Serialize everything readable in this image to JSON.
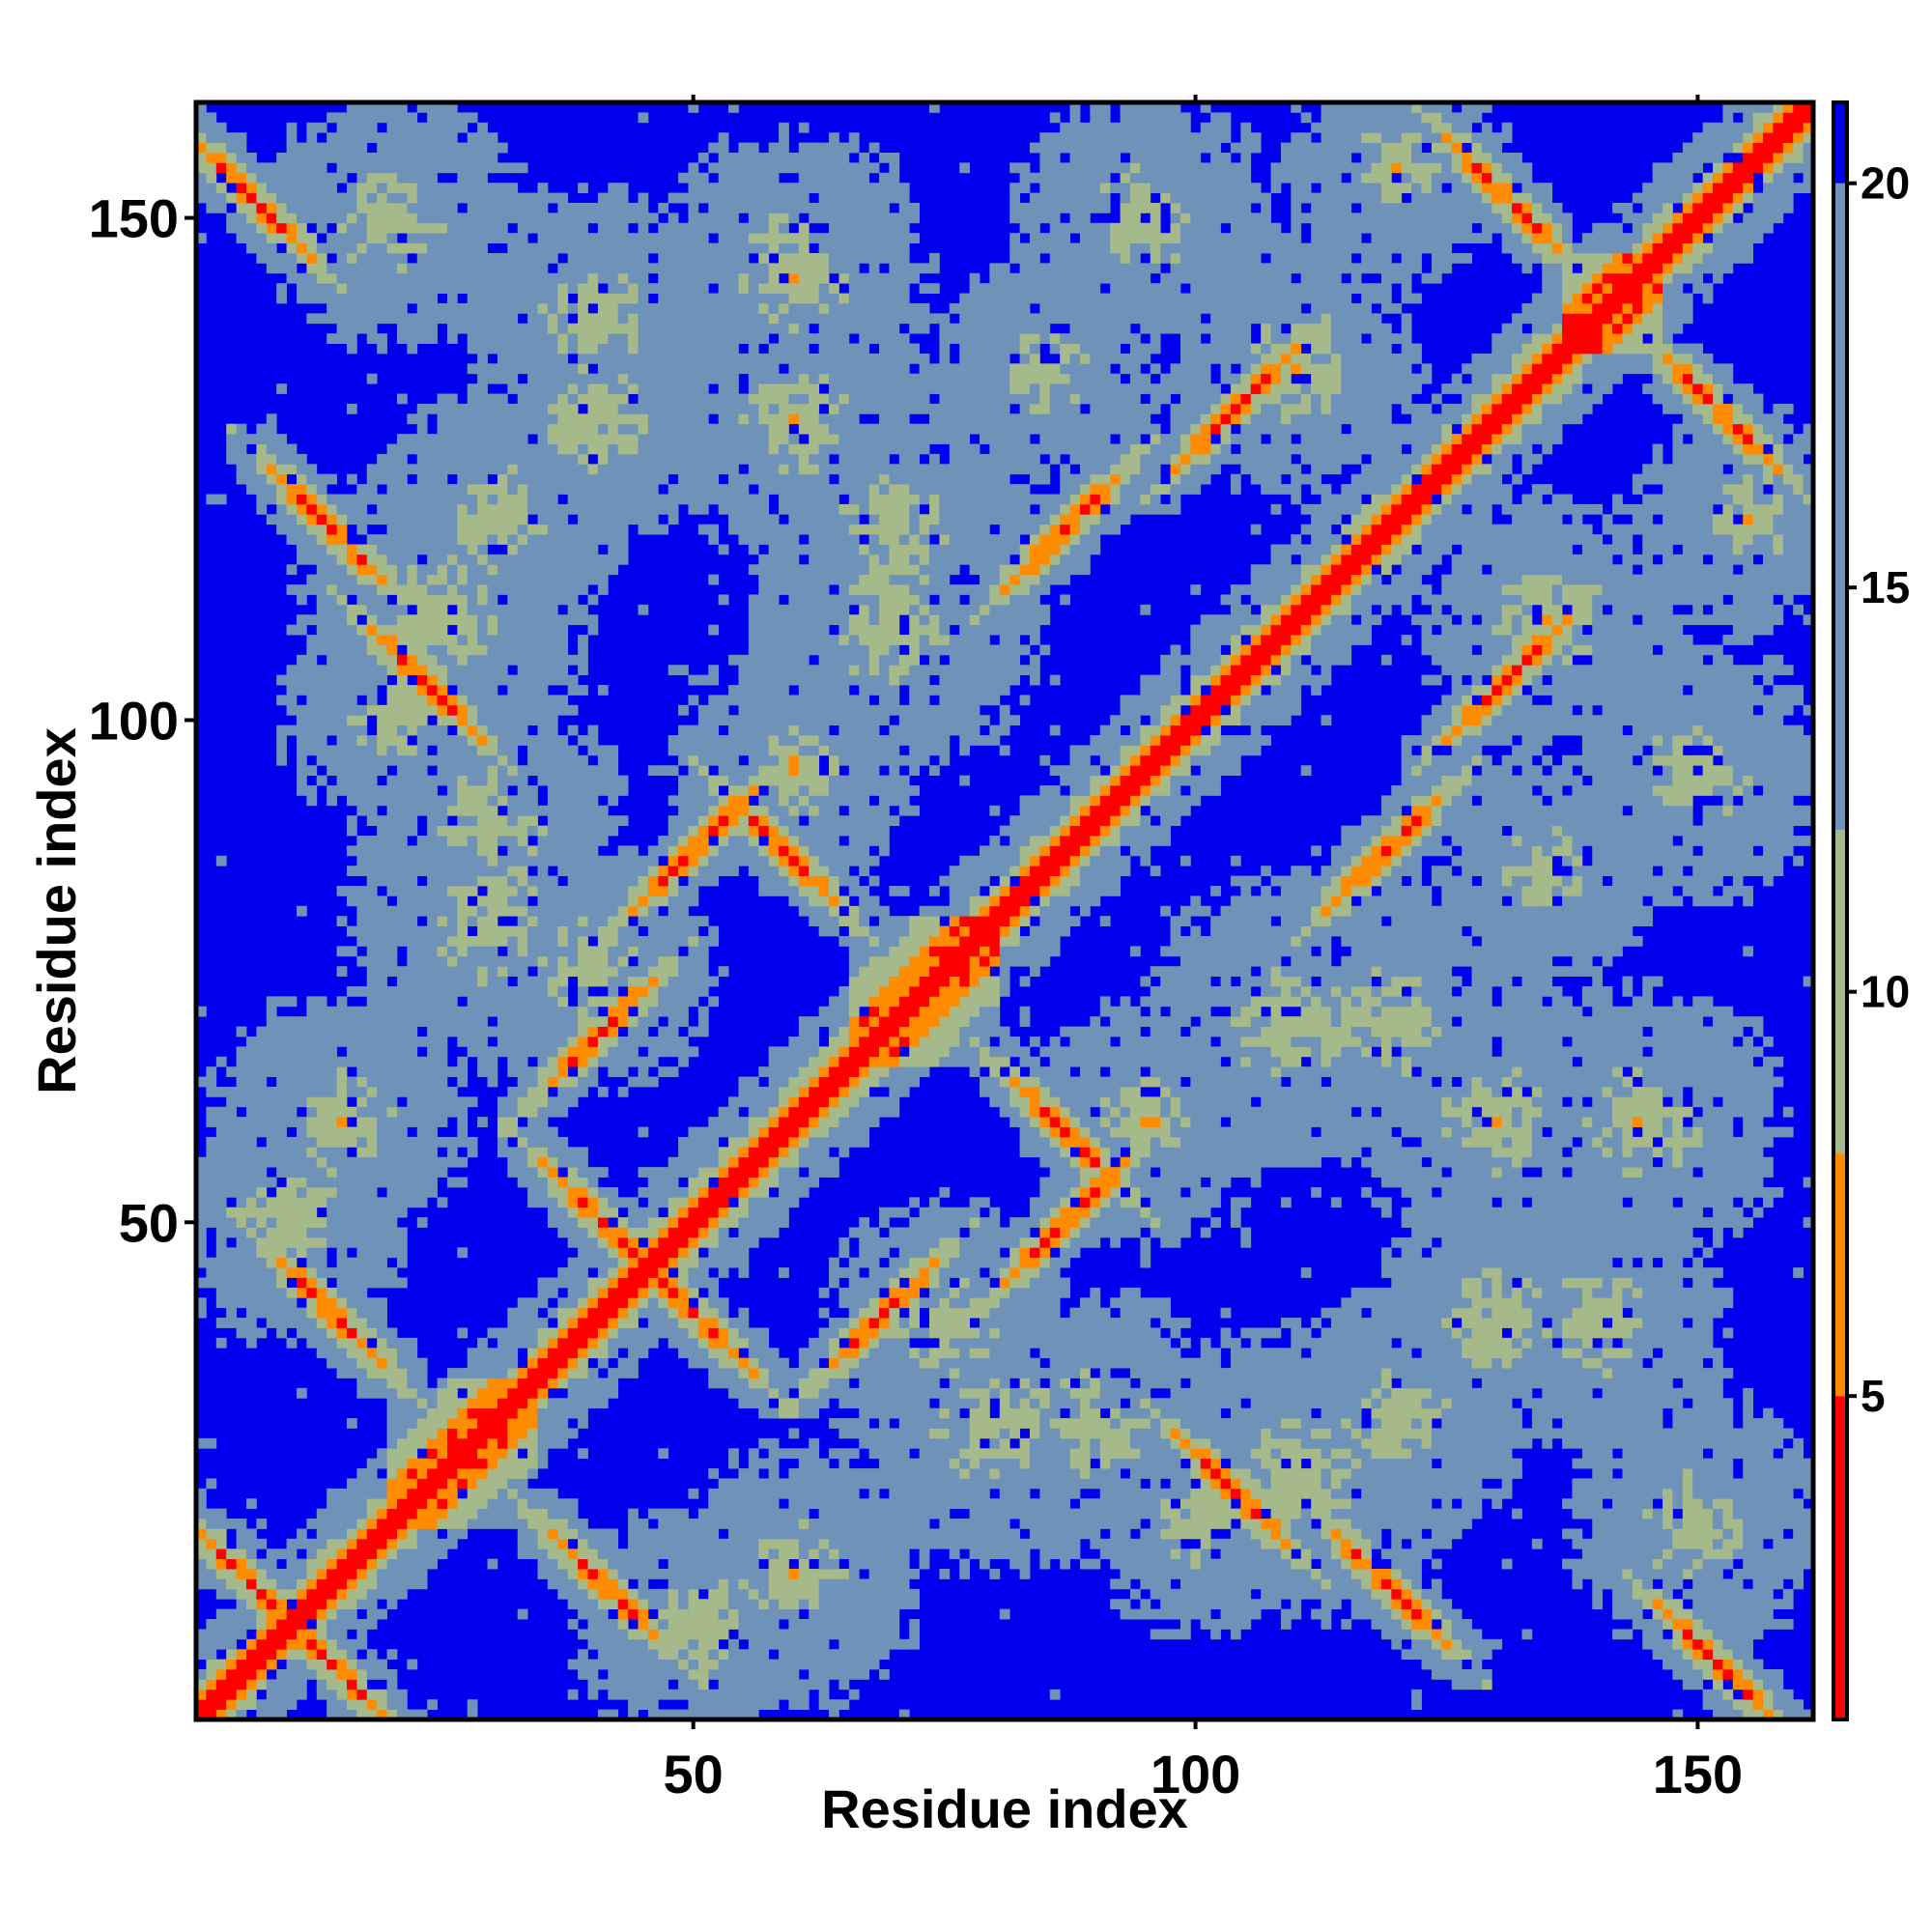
{
  "chart_data": {
    "type": "heatmap",
    "title": "",
    "xlabel": "Residue index",
    "ylabel": "Residue index",
    "n_residues": 161,
    "xlim": [
      1,
      161
    ],
    "ylim": [
      1,
      161
    ],
    "x_ticks": [
      50,
      100,
      150
    ],
    "y_ticks": [
      50,
      100,
      150
    ],
    "x_tick_labels": [
      "50",
      "100",
      "150"
    ],
    "y_tick_labels": [
      "50",
      "100",
      "150"
    ],
    "colorbar": {
      "range": [
        1,
        21
      ],
      "ticks": [
        5,
        10,
        15,
        20
      ],
      "tick_labels": [
        "5",
        "10",
        "15",
        "20"
      ],
      "levels": [
        {
          "from": 1,
          "to": 5,
          "color": "#ff0000"
        },
        {
          "from": 5,
          "to": 8,
          "color": "#ff8c00"
        },
        {
          "from": 8,
          "to": 12,
          "color": "#a6b98a"
        },
        {
          "from": 12,
          "to": 20,
          "color": "#6e92b8"
        },
        {
          "from": 20,
          "to": 21,
          "color": "#0000ee"
        }
      ]
    },
    "structure_elements": {
      "strands": [
        [
          3,
          9
        ],
        [
          11,
          17
        ],
        [
          38,
          44
        ],
        [
          47,
          53
        ],
        [
          56,
          62
        ],
        [
          84,
          90
        ],
        [
          101,
          107
        ],
        [
          116,
          122
        ],
        [
          128,
          134
        ],
        [
          148,
          155
        ]
      ],
      "helices": [
        [
          20,
          34
        ],
        [
          66,
          80
        ],
        [
          137,
          146
        ]
      ],
      "parallel_pairs": [
        [
          [
            38,
            44
          ],
          [
            66,
            72
          ]
        ],
        [
          [
            47,
            53
          ],
          [
            84,
            90
          ]
        ],
        [
          [
            84,
            90
          ],
          [
            116,
            122
          ]
        ],
        [
          [
            101,
            107
          ],
          [
            128,
            134
          ]
        ]
      ],
      "antiparallel_pairs": [
        [
          [
            3,
            9
          ],
          [
            148,
            155
          ]
        ],
        [
          [
            11,
            17
          ],
          [
            116,
            122
          ]
        ],
        [
          [
            3,
            9
          ],
          [
            11,
            17
          ]
        ],
        [
          [
            20,
            26
          ],
          [
            101,
            107
          ]
        ],
        [
          [
            38,
            44
          ],
          [
            47,
            53
          ]
        ],
        [
          [
            56,
            62
          ],
          [
            84,
            90
          ]
        ],
        [
          [
            128,
            134
          ],
          [
            148,
            155
          ]
        ],
        [
          [
            11,
            17
          ],
          [
            38,
            44
          ]
        ]
      ]
    }
  }
}
